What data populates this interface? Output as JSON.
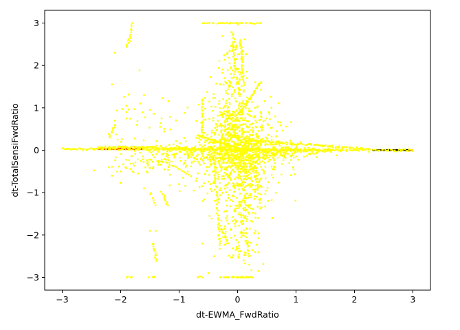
{
  "chart_data": {
    "type": "scatter",
    "title": "",
    "xlabel": "dt-EWMA_FwdRatio",
    "ylabel": "dt-TotalSensiFwdRatio",
    "xlim": [
      -3.3,
      3.3
    ],
    "ylim": [
      -3.3,
      3.3
    ],
    "xticks": [
      -3,
      -2,
      -1,
      0,
      1,
      2,
      3
    ],
    "yticks": [
      -3,
      -2,
      -1,
      0,
      1,
      2,
      3
    ],
    "xtick_labels": [
      "−3",
      "−2",
      "−1",
      "0",
      "1",
      "2",
      "3"
    ],
    "ytick_labels": [
      "−3",
      "−2",
      "−1",
      "0",
      "1",
      "2",
      "3"
    ],
    "grid": false,
    "legend": "none",
    "point_color": "#ffff00",
    "underlay_colors": [
      "#ff0000",
      "#000000"
    ],
    "series": [
      {
        "color": "#ffff00",
        "segments": [
          {
            "from": [
              -3.0,
              0.03
            ],
            "to": [
              3.0,
              0.0
            ],
            "n": 300
          },
          {
            "from": [
              -2.4,
              0.06
            ],
            "to": [
              -1.4,
              0.08
            ],
            "n": 60
          },
          {
            "from": [
              -1.4,
              0.05
            ],
            "to": [
              1.6,
              -0.02
            ],
            "n": 120
          },
          {
            "from": [
              0.0,
              0.25
            ],
            "to": [
              2.2,
              0.03
            ],
            "n": 100
          },
          {
            "from": [
              -0.7,
              0.35
            ],
            "to": [
              0.0,
              0.05
            ],
            "n": 60
          },
          {
            "from": [
              0.05,
              0.9
            ],
            "to": [
              0.4,
              1.6
            ],
            "n": 40
          },
          {
            "from": [
              -2.2,
              0.3
            ],
            "to": [
              -2.1,
              0.6
            ],
            "n": 12
          },
          {
            "from": [
              -1.85,
              2.6
            ],
            "to": [
              -1.8,
              3.0
            ],
            "n": 10
          },
          {
            "from": [
              -1.9,
              2.45
            ],
            "to": [
              -1.85,
              2.6
            ],
            "n": 6
          },
          {
            "from": [
              -0.08,
              2.8
            ],
            "to": [
              -0.05,
              1.9
            ],
            "n": 20
          },
          {
            "from": [
              0.05,
              2.6
            ],
            "to": [
              0.1,
              1.6
            ],
            "n": 25
          },
          {
            "from": [
              -1.45,
              -2.2
            ],
            "to": [
              -1.4,
              -2.6
            ],
            "n": 12
          },
          {
            "from": [
              -1.3,
              -1.0
            ],
            "to": [
              -1.2,
              -1.3
            ],
            "n": 10
          },
          {
            "from": [
              -1.5,
              -1.0
            ],
            "to": [
              -1.4,
              -1.3
            ],
            "n": 6
          },
          {
            "from": [
              -0.3,
              -1.8
            ],
            "to": [
              -0.15,
              -2.2
            ],
            "n": 12
          },
          {
            "from": [
              0.1,
              -1.9
            ],
            "to": [
              0.2,
              -2.5
            ],
            "n": 12
          },
          {
            "from": [
              -0.3,
              -3.0
            ],
            "to": [
              0.25,
              -3.0
            ],
            "n": 30
          },
          {
            "from": [
              -0.6,
              3.0
            ],
            "to": [
              0.4,
              3.0
            ],
            "n": 30
          },
          {
            "from": [
              -1.9,
              -3.0
            ],
            "to": [
              -1.8,
              -3.0
            ],
            "n": 4
          },
          {
            "from": [
              -1.5,
              -3.0
            ],
            "to": [
              -1.4,
              -3.0
            ],
            "n": 4
          },
          {
            "from": [
              -0.7,
              -3.0
            ],
            "to": [
              -0.6,
              -3.0
            ],
            "n": 4
          },
          {
            "from": [
              -0.6,
              1.2
            ],
            "to": [
              -0.6,
              0.3
            ],
            "n": 20
          },
          {
            "from": [
              -1.2,
              -0.3
            ],
            "to": [
              -0.8,
              -0.6
            ],
            "n": 12
          },
          {
            "from": [
              -0.4,
              -0.2
            ],
            "to": [
              -0.3,
              -2.3
            ],
            "n": 40
          },
          {
            "from": [
              0.3,
              -0.3
            ],
            "to": [
              0.35,
              -1.0
            ],
            "n": 15
          }
        ],
        "clusters": [
          {
            "center": [
              0.0,
              0.0
            ],
            "sx": 0.35,
            "sy": 0.55,
            "n": 900
          },
          {
            "center": [
              -0.1,
              0.8
            ],
            "sx": 0.15,
            "sy": 0.6,
            "n": 150
          },
          {
            "center": [
              0.1,
              -0.9
            ],
            "sx": 0.15,
            "sy": 0.7,
            "n": 200
          },
          {
            "center": [
              -0.05,
              2.0
            ],
            "sx": 0.12,
            "sy": 0.5,
            "n": 80
          },
          {
            "center": [
              0.0,
              -2.0
            ],
            "sx": 0.15,
            "sy": 0.5,
            "n": 80
          },
          {
            "center": [
              0.6,
              0.0
            ],
            "sx": 0.45,
            "sy": 0.1,
            "n": 200
          },
          {
            "center": [
              -0.8,
              -0.1
            ],
            "sx": 0.4,
            "sy": 0.15,
            "n": 150
          },
          {
            "center": [
              -1.6,
              -0.3
            ],
            "sx": 0.3,
            "sy": 0.2,
            "n": 60
          },
          {
            "center": [
              -1.8,
              0.8
            ],
            "sx": 0.15,
            "sy": 0.4,
            "n": 20
          },
          {
            "center": [
              -1.3,
              0.4
            ],
            "sx": 0.2,
            "sy": 0.4,
            "n": 15
          }
        ],
        "points": [
          [
            -2.1,
            2.3
          ],
          [
            -2.15,
            1.55
          ],
          [
            -1.9,
            1.05
          ],
          [
            -1.9,
            0.9
          ],
          [
            -1.9,
            0.75
          ],
          [
            -1.6,
            1.3
          ],
          [
            -1.5,
            0.95
          ],
          [
            -1.3,
            0.75
          ],
          [
            -1.6,
            -0.9
          ],
          [
            -1.7,
            -0.55
          ],
          [
            -1.5,
            -1.9
          ],
          [
            -1.4,
            -1.9
          ],
          [
            -1.0,
            -0.8
          ],
          [
            -0.6,
            -2.2
          ],
          [
            -0.5,
            -2.9
          ],
          [
            -0.4,
            -2.5
          ],
          [
            -0.2,
            -1.6
          ],
          [
            0.2,
            -2.7
          ],
          [
            0.3,
            -2.4
          ],
          [
            -0.2,
            1.4
          ],
          [
            0.25,
            1.3
          ],
          [
            0.3,
            1.0
          ],
          [
            -0.3,
            0.9
          ],
          [
            0.2,
            -1.5
          ],
          [
            0.35,
            -1.6
          ],
          [
            -2.15,
            -0.6
          ],
          [
            -2.2,
            -0.4
          ],
          [
            -2.0,
            -0.5
          ]
        ]
      }
    ],
    "underlay": [
      {
        "color": "#ff0000",
        "from": [
          -2.4,
          0.03
        ],
        "to": [
          -1.6,
          0.03
        ]
      },
      {
        "color": "#000000",
        "from": [
          2.3,
          0.0
        ],
        "to": [
          2.95,
          0.0
        ]
      },
      {
        "color": "#ff0000",
        "from": [
          2.95,
          0.0
        ],
        "to": [
          3.0,
          0.0
        ]
      }
    ]
  }
}
